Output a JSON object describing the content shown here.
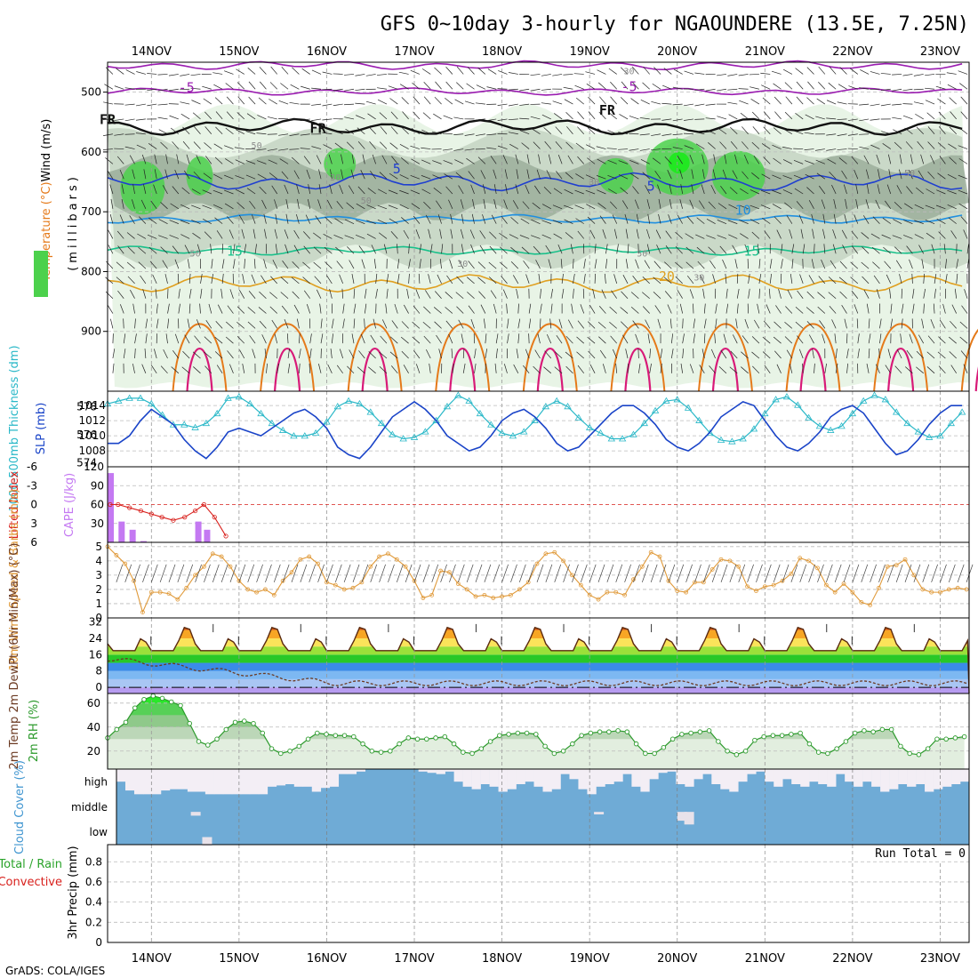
{
  "title": "GFS 0~10day 3-hourly for NGAOUNDERE (13.5E, 7.25N)",
  "footer": "GrADS: COLA/IGES",
  "run_total": "Run Total = 0",
  "colors": {
    "purple": "#9a1cb0",
    "black": "#111111",
    "blue": "#1f3fd0",
    "lightblue": "#1f8fe0",
    "teal": "#19c08a",
    "gold": "#e0a020",
    "orange": "#e57a1a",
    "magenta": "#d81a78",
    "rh_light": "#e8f4e6",
    "rh_mid": "#c6d6c4",
    "rh_dark": "#98ab98",
    "rh_green": "#4cd14c",
    "cyan": "#2ab8c8",
    "slp_blue": "#1a44c8",
    "cape": "#c479f2",
    "li_red": "#d8201c",
    "wind_orange": "#e09a3a",
    "cloud_blue": "#6fabd6",
    "rh2m_green": "#2c9a2c"
  },
  "chart_data": [
    {
      "type": "heatmap",
      "panel": "upper-air cross section",
      "ylabel_parts": [
        "RH (%)",
        "Temperature (°C)",
        "Wind (m/s)"
      ],
      "ylabel_unit": "(millibars)",
      "yticks": [
        "500",
        "600",
        "700",
        "800",
        "900"
      ],
      "ylim": [
        1000,
        450
      ],
      "x_dates": [
        "14NOV",
        "15NOV",
        "16NOV",
        "17NOV",
        "18NOV",
        "19NOV",
        "20NOV",
        "21NOV",
        "22NOV",
        "23NOV"
      ],
      "xlim_days": [
        13.5,
        23.33
      ],
      "contour_labels": [
        {
          "text": "-5",
          "color": "purple",
          "x": 14.4,
          "y": 500
        },
        {
          "text": "-5",
          "color": "purple",
          "x": 19.45,
          "y": 498
        },
        {
          "text": "FR",
          "color": "black",
          "x": 13.5,
          "y": 553
        },
        {
          "text": "FR",
          "color": "black",
          "x": 15.9,
          "y": 568
        },
        {
          "text": "FR",
          "color": "black",
          "x": 19.2,
          "y": 538
        },
        {
          "text": "5",
          "color": "blue",
          "x": 16.8,
          "y": 636
        },
        {
          "text": "5",
          "color": "blue",
          "x": 19.7,
          "y": 665
        },
        {
          "text": "10",
          "color": "lightblue",
          "x": 20.75,
          "y": 705
        },
        {
          "text": "15",
          "color": "teal",
          "x": 14.95,
          "y": 773
        },
        {
          "text": "15",
          "color": "teal",
          "x": 20.85,
          "y": 773
        },
        {
          "text": "20",
          "color": "gold",
          "x": 19.88,
          "y": 816
        },
        {
          "text": "50",
          "color": "gray",
          "x": 15.2,
          "y": 594
        },
        {
          "text": "50",
          "color": "gray",
          "x": 16.45,
          "y": 686
        },
        {
          "text": "50",
          "color": "gray",
          "x": 14.5,
          "y": 775
        },
        {
          "text": "50",
          "color": "gray",
          "x": 19.6,
          "y": 775
        },
        {
          "text": "50",
          "color": "gray",
          "x": 22.65,
          "y": 640
        },
        {
          "text": "30",
          "color": "gray",
          "x": 17.55,
          "y": 792
        },
        {
          "text": "30",
          "color": "gray",
          "x": 19.05,
          "y": 655
        },
        {
          "text": "30",
          "color": "gray",
          "x": 19.45,
          "y": 470
        },
        {
          "text": "30",
          "color": "gray",
          "x": 20.25,
          "y": 815
        },
        {
          "text": "30",
          "color": "gray",
          "x": 16.1,
          "y": 648
        }
      ],
      "isotherms": [
        {
          "label": "-7",
          "color": "purple",
          "base": 455,
          "amp": 5
        },
        {
          "label": "-5",
          "color": "purple",
          "base": 499,
          "amp": 4
        },
        {
          "label": "0 (FR)",
          "color": "black",
          "base": 558,
          "amp": 9
        },
        {
          "label": "5",
          "color": "blue",
          "base": 650,
          "amp": 10
        },
        {
          "label": "10",
          "color": "lightblue",
          "base": 712,
          "amp": 5
        },
        {
          "label": "15",
          "color": "teal",
          "base": 765,
          "amp": 5
        },
        {
          "label": "20",
          "color": "gold",
          "base": 820,
          "amp": 10
        }
      ]
    },
    {
      "type": "line",
      "panel": "thickness and SLP",
      "ylabel_left": "1000-500mb Thickness (dm)",
      "ylabel_right": "SLP (mb)",
      "yticks_left": [
        "574",
        "576",
        "578"
      ],
      "yticks_right": [
        "1008",
        "1010",
        "1012",
        "1014"
      ],
      "ylim_left": [
        573.7,
        579.1
      ],
      "ylim_right": [
        1005.9,
        1015.9
      ],
      "x_start_day": 13.5,
      "x_step_hours": 3,
      "series": [
        {
          "color": "cyan",
          "values": [
            578.2,
            578.4,
            578.6,
            578.6,
            578.2,
            577.4,
            576.7,
            576.7,
            576.5,
            576.8,
            577.5,
            578.6,
            578.7,
            578.2,
            577.5,
            576.8,
            576.3,
            575.9,
            575.9,
            576.1,
            576.9,
            578.0,
            578.4,
            578.2,
            577.6,
            576.8,
            576.0,
            575.7,
            575.8,
            576.2,
            577.0,
            578.0,
            578.8,
            578.4,
            577.5,
            576.7,
            576.1,
            575.9,
            576.2,
            577.0,
            578.0,
            578.4,
            578.0,
            577.2,
            576.5,
            576.1,
            575.7,
            575.7,
            576.0,
            576.8,
            577.7,
            578.4,
            578.5,
            577.9,
            577.0,
            576.1,
            575.6,
            575.5,
            575.7,
            576.4,
            577.5,
            578.5,
            578.7,
            578.1,
            577.2,
            576.6,
            576.3,
            576.6,
            577.5,
            578.4,
            578.8,
            578.5,
            577.6,
            576.8,
            576.2,
            575.8,
            575.9,
            576.8,
            577.6,
            578.2,
            578.4,
            578.0,
            577.0,
            575.9,
            574.9,
            574.4,
            575.0,
            576.1,
            577.0,
            577.0,
            576.5,
            575.8,
            575.5,
            575.3,
            575.1,
            575.5,
            575.9,
            575.7,
            575.6,
            575.5,
            575.9,
            576.1,
            575.8,
            575.6,
            575.3,
            575.1,
            575.2,
            575.0,
            575.2,
            575.6,
            575.8,
            575.4,
            575.0,
            574.7,
            574.5,
            574.4,
            574.2,
            574.3,
            574.5,
            574.8,
            574.9
          ]
        },
        {
          "color": "slp_blue",
          "values": [
            1009.0,
            1009.0,
            1010.0,
            1012.0,
            1013.5,
            1012.5,
            1011.5,
            1009.5,
            1008.0,
            1007.0,
            1008.5,
            1010.5,
            1011.0,
            1010.5,
            1010.0,
            1011.0,
            1012.0,
            1013.0,
            1013.5,
            1012.5,
            1011.0,
            1008.5,
            1007.5,
            1007.0,
            1008.5,
            1010.5,
            1012.5,
            1013.5,
            1014.5,
            1013.5,
            1012.0,
            1010.0,
            1009.0,
            1008.0,
            1008.5,
            1010.0,
            1012.0,
            1013.0,
            1013.5,
            1012.5,
            1011.0,
            1009.0,
            1008.0,
            1008.5,
            1010.0,
            1011.5,
            1013.0,
            1014.0,
            1014.0,
            1013.0,
            1011.5,
            1009.5,
            1008.5,
            1008.0,
            1009.0,
            1010.5,
            1012.5,
            1013.5,
            1014.5,
            1014.0,
            1012.0,
            1010.0,
            1008.5,
            1008.0,
            1009.0,
            1010.5,
            1012.5,
            1013.5,
            1014.0,
            1013.0,
            1011.0,
            1009.0,
            1007.5,
            1008.0,
            1009.5,
            1011.5,
            1013.0,
            1014.0,
            1014.0,
            1013.0,
            1011.0,
            1009.0,
            1008.0,
            1009.0,
            1010.5,
            1012.0,
            1013.5,
            1014.0,
            1014.0,
            1012.5,
            1011.0,
            1009.5,
            1008.0,
            1009.0,
            1011.0,
            1013.0,
            1014.0,
            1014.5,
            1013.5,
            1012.0,
            1010.0,
            1008.5,
            1008.0,
            1009.0,
            1010.5,
            1012.0,
            1013.0,
            1013.5,
            1013.0,
            1011.5,
            1010.0,
            1009.0,
            1008.5,
            1009.5,
            1011.0,
            1012.5,
            1013.5,
            1014.0,
            1013.5,
            1012.5,
            1011.5,
            1010.5,
            1009.5,
            1008.5,
            1008.0,
            1008.5,
            1009.5,
            1010.5,
            1011.5,
            1012.5,
            1013.0,
            1012.5,
            1011.5,
            1010.0,
            1009.0,
            1008.5,
            1009.5,
            1011.0,
            1012.5,
            1013.5,
            1014.5
          ]
        }
      ]
    },
    {
      "type": "bar",
      "panel": "CAPE and Lifted Index",
      "ylabel_left": "Lifted Index",
      "ylabel_right": "CAPE (J/kg)",
      "yticks_left": [
        "-6",
        "-3",
        "0",
        "3",
        "6"
      ],
      "yticks_right": [
        "30",
        "60",
        "90",
        "120"
      ],
      "ylim_left": [
        -6,
        6
      ],
      "ylim_right": [
        0,
        120
      ],
      "x_start_day": 13.5,
      "x_step_hours": 3,
      "series": [
        {
          "name": "CAPE",
          "color": "cape",
          "values": [
            110,
            33,
            20,
            2,
            0,
            0,
            0,
            0,
            0,
            0,
            0,
            0,
            0,
            0,
            0,
            0,
            0,
            0,
            0,
            0,
            0,
            0,
            0,
            0,
            0,
            0,
            0,
            0,
            0,
            0,
            0,
            0,
            0,
            0,
            0,
            0,
            0,
            0,
            0,
            0,
            0,
            0,
            0,
            0,
            0,
            0,
            0,
            0,
            0,
            0,
            0,
            0,
            0,
            0,
            0,
            0,
            0,
            0,
            0,
            0,
            0,
            0,
            0,
            0,
            0,
            0,
            0,
            0,
            0,
            0,
            0,
            0,
            0,
            0,
            0,
            0,
            0,
            0,
            0,
            0
          ]
        },
        {
          "name": "Lifted Index",
          "color": "li_red",
          "x_days": [
            13.53,
            13.62,
            13.75,
            13.88,
            14.0,
            14.12,
            14.25,
            14.38,
            14.5,
            14.6,
            14.72,
            14.85
          ],
          "values": [
            0,
            0,
            0.5,
            1,
            1.5,
            2,
            2.5,
            2,
            1,
            0,
            2,
            5
          ]
        }
      ]
    },
    {
      "type": "line",
      "panel": "10m wind",
      "ylabel": "10m Wind Speed & Barbs (m/s)",
      "yticks": [
        "0",
        "1",
        "2",
        "3",
        "4",
        "5"
      ],
      "ylim": [
        0,
        5.3
      ],
      "x_start_day": 13.5,
      "x_step_hours": 3,
      "values": [
        5.0,
        4.4,
        3.8,
        2.6,
        0.4,
        1.8,
        1.8,
        1.7,
        1.3,
        2.1,
        3.0,
        3.6,
        4.5,
        4.3,
        3.6,
        2.6,
        2.0,
        1.8,
        2.0,
        1.6,
        2.6,
        3.2,
        4.1,
        4.3,
        3.8,
        2.5,
        2.3,
        2.0,
        2.1,
        2.5,
        3.6,
        4.3,
        4.5,
        4.1,
        3.6,
        2.6,
        1.4,
        1.6,
        3.3,
        3.2,
        2.4,
        2.0,
        1.5,
        1.6,
        1.4,
        1.5,
        1.6,
        2.0,
        2.5,
        3.8,
        4.5,
        4.6,
        4.0,
        3.0,
        2.3,
        1.6,
        1.3,
        1.8,
        1.8,
        1.6,
        2.7,
        3.6,
        4.6,
        4.3,
        2.6,
        1.9,
        1.8,
        2.5,
        2.5,
        3.4,
        4.1,
        4.0,
        3.6,
        2.2,
        1.9,
        2.2,
        2.3,
        2.6,
        3.1,
        4.2,
        4.0,
        3.5,
        2.3,
        1.8,
        2.4,
        1.8,
        1.1,
        0.9,
        2.1,
        3.6,
        3.7,
        4.1,
        3.0,
        2.0,
        1.8,
        1.8,
        2.0,
        2.1,
        2.0,
        1.8,
        1.5,
        1.6,
        2.2,
        2.5
      ]
    },
    {
      "type": "area",
      "panel": "2m temperature and dewpoint",
      "ylabel": "2m Temp 2m DewPt (6hr Min/Max) (°C)",
      "yticks": [
        "0",
        "8",
        "16",
        "24",
        "32"
      ],
      "ylim": [
        -3,
        34
      ],
      "x_days_peaks": [
        14.4,
        15.4,
        16.4,
        17.4,
        18.4,
        19.4,
        20.4,
        21.4,
        22.4
      ],
      "temp_max": 30,
      "temp_min": 18,
      "dewpt_start": 14,
      "dewpt_end": 2,
      "color_bands": [
        {
          "from": -3,
          "to": 0,
          "color": "#b79cf0"
        },
        {
          "from": 0,
          "to": 4,
          "color": "#a9c6f4"
        },
        {
          "from": 4,
          "to": 8,
          "color": "#7db8f2"
        },
        {
          "from": 8,
          "to": 12,
          "color": "#3b8be8"
        },
        {
          "from": 12,
          "to": 16,
          "color": "#28c828"
        },
        {
          "from": 16,
          "to": 20,
          "color": "#9be03a"
        },
        {
          "from": 20,
          "to": 24,
          "color": "#fbe35a"
        },
        {
          "from": 24,
          "to": 28,
          "color": "#f7a624"
        },
        {
          "from": 28,
          "to": 34,
          "color": "#d85a0c"
        }
      ]
    },
    {
      "type": "area",
      "panel": "2m RH",
      "ylabel": "2m RH (%)",
      "yticks": [
        "20",
        "40",
        "60"
      ],
      "ylim": [
        5,
        68
      ],
      "x_start_day": 13.5,
      "x_step_hours": 3,
      "values": [
        31,
        38,
        44,
        56,
        63,
        66,
        64,
        61,
        58,
        43,
        28,
        25,
        30,
        38,
        44,
        45,
        43,
        35,
        22,
        18,
        20,
        24,
        30,
        35,
        34,
        33,
        33,
        32,
        26,
        20,
        19,
        20,
        26,
        31,
        30,
        30,
        31,
        32,
        26,
        19,
        18,
        22,
        28,
        33,
        34,
        35,
        35,
        34,
        24,
        18,
        20,
        26,
        33,
        35,
        36,
        36,
        37,
        36,
        26,
        18,
        18,
        23,
        30,
        34,
        35,
        36,
        37,
        28,
        20,
        17,
        20,
        29,
        32,
        33,
        33,
        34,
        35,
        26,
        19,
        18,
        22,
        28,
        35,
        37,
        36,
        38,
        38,
        24,
        18,
        17,
        22,
        30,
        30,
        31,
        32,
        33
      ]
    },
    {
      "type": "bar",
      "panel": "Cloud cover",
      "ylabel": "Cloud Cover (%)",
      "row_labels": [
        "high",
        "middle",
        "low"
      ],
      "note": "high cloud fraction per 3-hourly step (0-1 of row)",
      "x_start_day": 13.5,
      "x_step_hours": 3,
      "high": [
        0.5,
        0.15,
        0,
        0,
        0,
        0.15,
        0.2,
        0.2,
        0.1,
        0.1,
        0,
        0,
        0,
        0,
        0,
        0,
        0,
        0.3,
        0.35,
        0.4,
        0.3,
        0.3,
        0.1,
        0.25,
        0.3,
        0.8,
        0.8,
        0.9,
        1,
        1,
        1,
        1,
        1,
        1,
        0.9,
        0.85,
        0.8,
        0.9,
        0.5,
        0.3,
        0.2,
        0.4,
        0.3,
        0.1,
        0.2,
        0.4,
        0.5,
        0.3,
        0.1,
        0.2,
        0.8,
        0.6,
        0.2,
        0,
        0.3,
        0.4,
        0.5,
        0.8,
        0.3,
        0.1,
        0.6,
        0.85,
        0.9,
        0.4,
        0.3,
        0.6,
        0.8,
        0.4,
        0.2,
        0.1,
        0.5,
        0.8,
        0.9,
        0.5,
        0.3,
        0.6,
        0.4,
        0.3,
        0.5,
        0.4,
        0.3,
        0.8,
        0.5,
        0.3,
        0.5,
        0.3,
        0.1,
        0.2,
        0.4,
        0.3,
        0.4,
        0.1,
        0.2,
        0.3,
        0.4,
        0.5
      ]
    },
    {
      "type": "bar",
      "panel": "3hr precipitation",
      "ylabel_parts": [
        "Total / Rain",
        "Convective"
      ],
      "ylabel": "3hr Precip (mm)",
      "yticks": [
        "0",
        "0.2",
        "0.4",
        "0.6",
        "0.8"
      ],
      "ylim": [
        0,
        0.97
      ],
      "values": []
    }
  ]
}
